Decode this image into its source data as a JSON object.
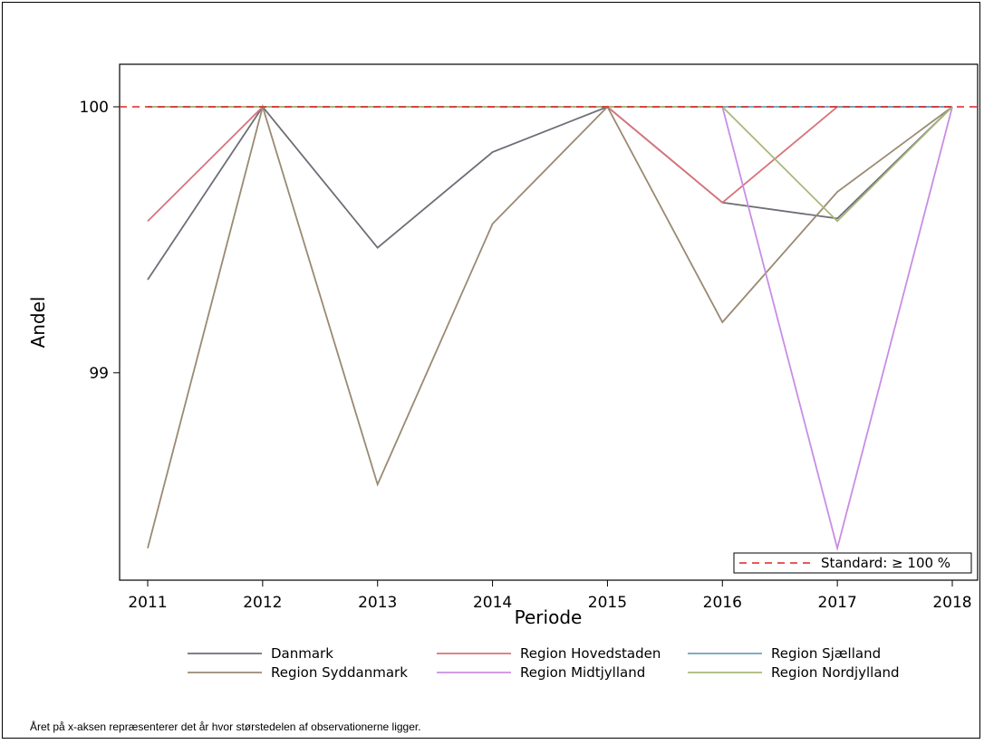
{
  "chart_data": {
    "type": "line",
    "xlabel": "Periode",
    "ylabel": "Andel",
    "x": [
      "2011",
      "2012",
      "2013",
      "2014",
      "2015",
      "2016",
      "2017",
      "2018"
    ],
    "ylim": [
      98.22,
      100.16
    ],
    "yticks": [
      "99",
      "100"
    ],
    "grid": false,
    "series": [
      {
        "name": "Danmark",
        "color": "#6e6e78",
        "values": [
          99.35,
          100,
          99.47,
          99.83,
          100,
          99.64,
          99.58,
          100
        ]
      },
      {
        "name": "Region Hovedstaden",
        "color": "#d9737a",
        "values": [
          99.57,
          100,
          100,
          100,
          100,
          99.64,
          100,
          100
        ]
      },
      {
        "name": "Region Sjælland",
        "color": "#6aa5b3",
        "values": [
          100,
          100,
          100,
          100,
          100,
          100,
          100,
          100
        ]
      },
      {
        "name": "Region Syddanmark",
        "color": "#9a8a72",
        "values": [
          98.34,
          100,
          98.58,
          99.56,
          100,
          99.19,
          99.68,
          100
        ]
      },
      {
        "name": "Region Midtjylland",
        "color": "#c98de3",
        "values": [
          100,
          100,
          100,
          100,
          100,
          100,
          98.34,
          100
        ]
      },
      {
        "name": "Region Nordjylland",
        "color": "#a8b87a",
        "values": [
          100,
          100,
          100,
          100,
          100,
          100,
          99.57,
          100
        ]
      }
    ],
    "reference_line": {
      "value": 100,
      "label": "Standard: ≥ 100 %",
      "color": "#e32222"
    },
    "legend_position": "bottom",
    "inset_legend_position": "bottom-right"
  },
  "footnote": "Året på x-aksen repræsenterer det år hvor størstedelen af observationerne ligger."
}
